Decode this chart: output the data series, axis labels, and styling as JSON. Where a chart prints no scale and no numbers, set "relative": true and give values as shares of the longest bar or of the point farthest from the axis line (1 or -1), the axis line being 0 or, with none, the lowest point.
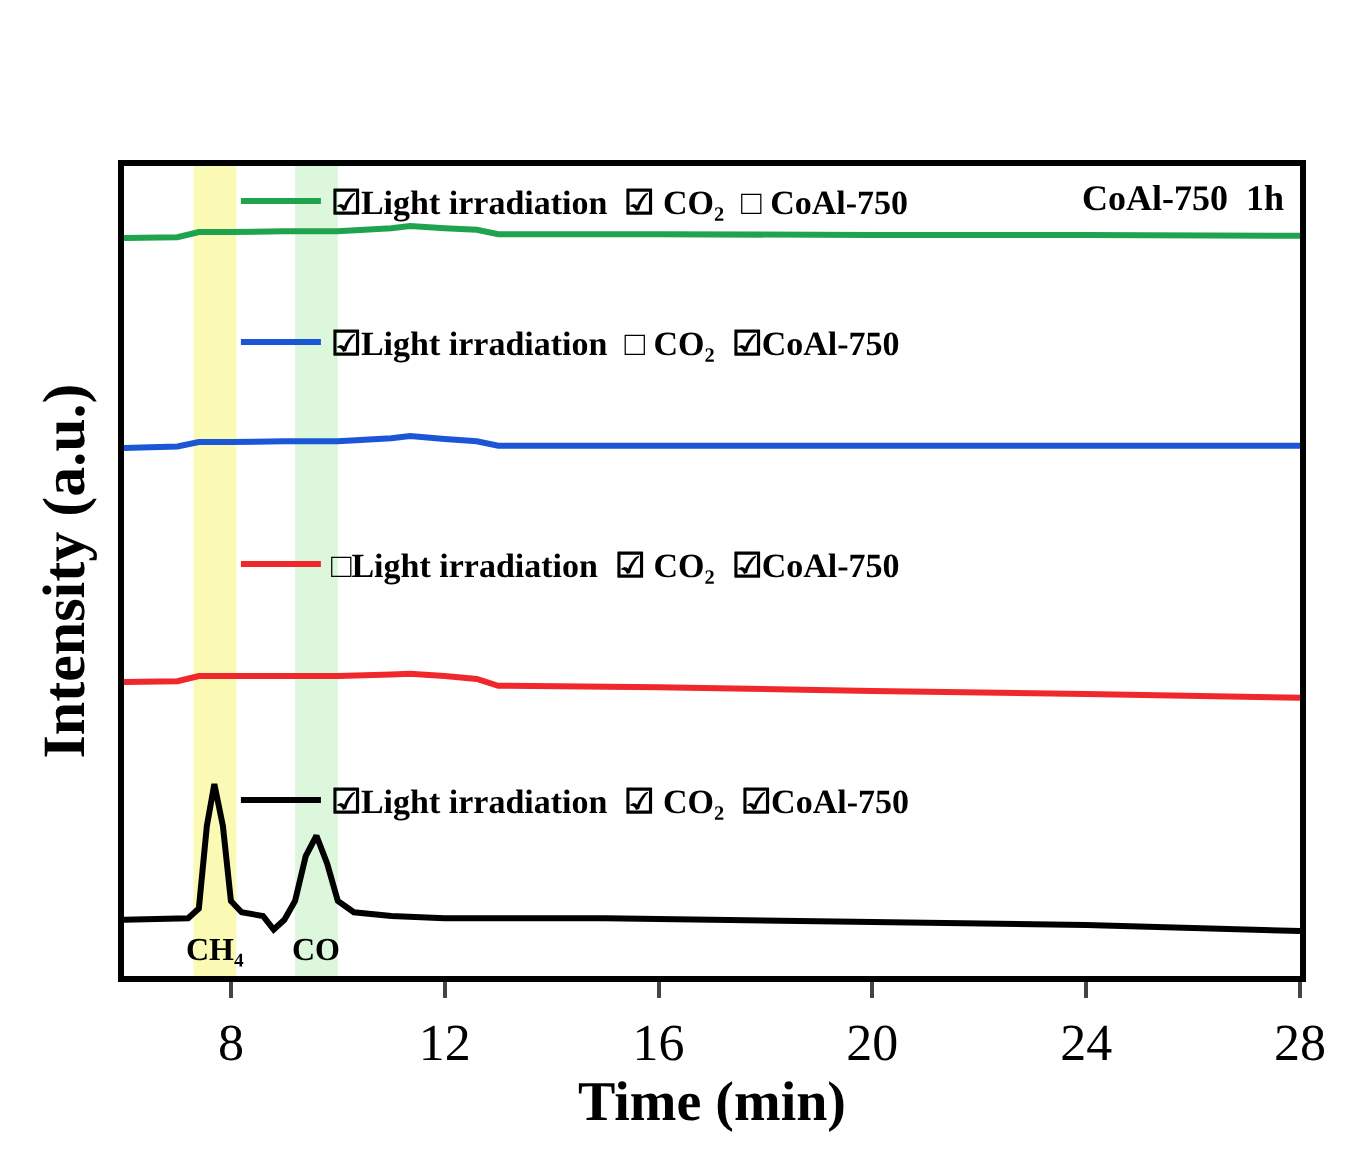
{
  "chart_data": {
    "type": "line",
    "relative": true,
    "xlabel": "Time (min)",
    "ylabel": "Intensity (a.u.)",
    "xlim": [
      6,
      28
    ],
    "xticks": [
      8,
      12,
      16,
      20,
      24,
      28
    ],
    "grid": false,
    "legend": "top left",
    "marker": "none",
    "line_style": "solid",
    "bands": [
      {
        "axis": "x",
        "from": 7.3,
        "to": 8.1,
        "color": "#fafab4"
      },
      {
        "axis": "x",
        "from": 9.2,
        "to": 10.0,
        "color": "#dcf7dc"
      }
    ],
    "annotations": [
      "CoAl-750  1h",
      "CH₄",
      "CO"
    ],
    "series": [
      {
        "name": "☑Light irradiation  ☑ CO₂  □ CoAl-750",
        "color": "#1fa34f",
        "x": [
          6,
          7,
          7.4,
          8,
          9,
          10,
          11,
          11.35,
          12,
          12.6,
          13,
          16,
          20,
          24,
          28
        ],
        "values": [
          0.984,
          0.985,
          0.992,
          0.992,
          0.993,
          0.993,
          0.997,
          1.0,
          0.997,
          0.995,
          0.989,
          0.989,
          0.988,
          0.988,
          0.987
        ]
      },
      {
        "name": "☑Light irradiation  □ CO₂  ☑CoAl-750",
        "color": "#1a56d6",
        "x": [
          6,
          7,
          7.4,
          8,
          9,
          10,
          11,
          11.35,
          12,
          12.6,
          13,
          16,
          20,
          24,
          28
        ],
        "values": [
          0.704,
          0.706,
          0.712,
          0.712,
          0.713,
          0.713,
          0.717,
          0.72,
          0.716,
          0.713,
          0.707,
          0.707,
          0.707,
          0.707,
          0.707
        ]
      },
      {
        "name": "□Light irradiation  ☑ CO₂  ☑CoAl-750",
        "color": "#f0272b",
        "x": [
          6,
          7,
          7.4,
          8,
          9,
          10,
          11,
          11.35,
          12,
          12.6,
          13,
          16,
          20,
          24,
          28
        ],
        "values": [
          0.392,
          0.393,
          0.4,
          0.4,
          0.4,
          0.4,
          0.402,
          0.403,
          0.4,
          0.396,
          0.387,
          0.385,
          0.38,
          0.376,
          0.371
        ]
      },
      {
        "name": "☑Light irradiation  ☑ CO₂  ☑CoAl-750",
        "color": "#000000",
        "x": [
          6,
          7.2,
          7.4,
          7.55,
          7.69,
          7.85,
          8.0,
          8.2,
          8.6,
          8.8,
          9.0,
          9.2,
          9.4,
          9.6,
          9.8,
          10.0,
          10.3,
          11,
          12,
          15,
          20,
          24,
          28
        ],
        "values": [
          0.075,
          0.077,
          0.09,
          0.2,
          0.256,
          0.2,
          0.1,
          0.085,
          0.08,
          0.062,
          0.075,
          0.1,
          0.16,
          0.187,
          0.15,
          0.1,
          0.085,
          0.08,
          0.077,
          0.077,
          0.072,
          0.068,
          0.06
        ]
      }
    ]
  }
}
